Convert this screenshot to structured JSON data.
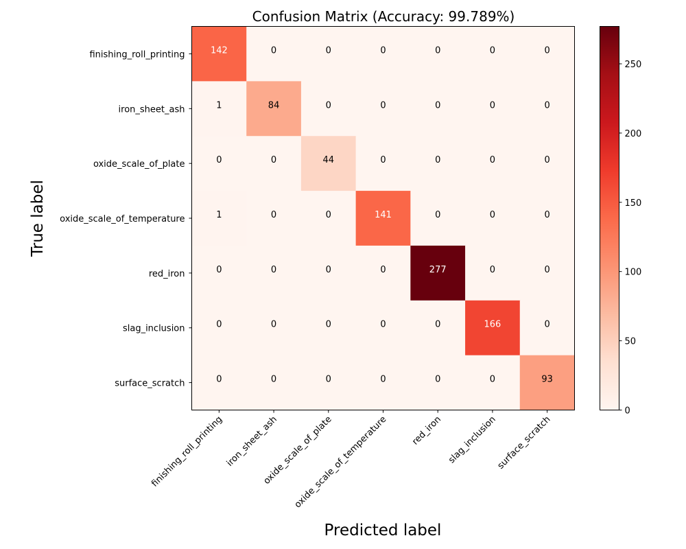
{
  "chart_data": {
    "type": "heatmap",
    "title": "Confusion Matrix (Accuracy: 99.789%)",
    "xlabel": "Predicted label",
    "ylabel": "True label",
    "row_labels": [
      "finishing_roll_printing",
      "iron_sheet_ash",
      "oxide_scale_of_plate",
      "oxide_scale_of_temperature",
      "red_iron",
      "slag_inclusion",
      "surface_scratch"
    ],
    "col_labels": [
      "finishing_roll_printing",
      "iron_sheet_ash",
      "oxide_scale_of_plate",
      "oxide_scale_of_temperature",
      "red_iron",
      "slag_inclusion",
      "surface_scratch"
    ],
    "matrix": [
      [
        142,
        0,
        0,
        0,
        0,
        0,
        0
      ],
      [
        1,
        84,
        0,
        0,
        0,
        0,
        0
      ],
      [
        0,
        0,
        44,
        0,
        0,
        0,
        0
      ],
      [
        1,
        0,
        0,
        141,
        0,
        0,
        0
      ],
      [
        0,
        0,
        0,
        0,
        277,
        0,
        0
      ],
      [
        0,
        0,
        0,
        0,
        0,
        166,
        0
      ],
      [
        0,
        0,
        0,
        0,
        0,
        0,
        93
      ]
    ],
    "colormap": "Reds",
    "colorbar": {
      "range": [
        0,
        277
      ],
      "ticks": [
        0,
        50,
        100,
        150,
        200,
        250
      ]
    },
    "grid": false
  }
}
